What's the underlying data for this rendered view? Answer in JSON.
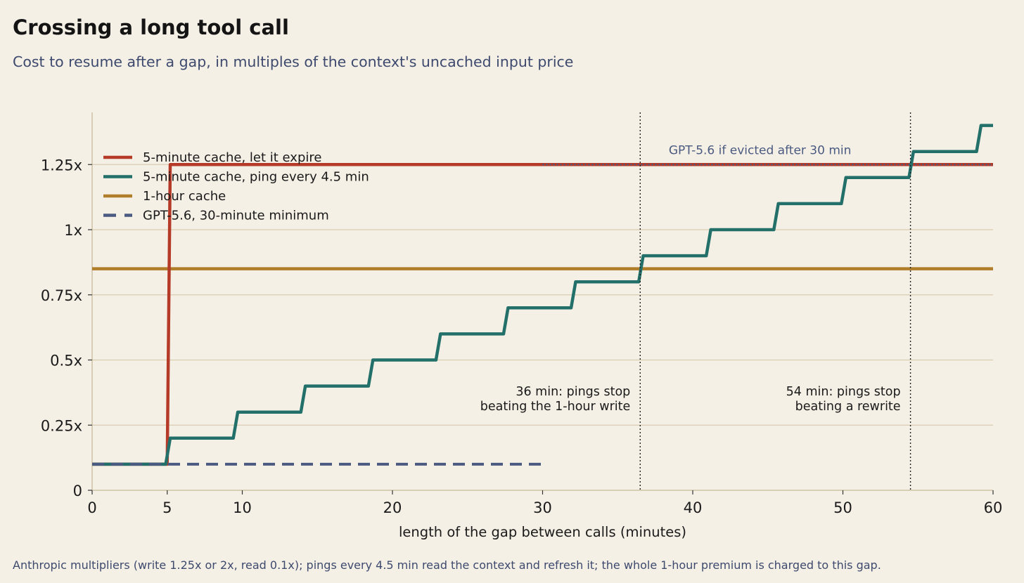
{
  "title": "Crossing a long tool call",
  "subtitle": "Cost to resume after a gap, in multiples of the context's uncached input price",
  "footnote": "Anthropic multipliers (write 1.25x or 2x, read 0.1x); pings every 4.5 min read the context and refresh it; the whole 1-hour premium is charged to this gap.",
  "colors": {
    "background": "#f5f0e6",
    "expire": "#b53a27",
    "ping": "#23706a",
    "hour": "#b07d2a",
    "gpt": "#4a5a80",
    "grid": "#d9cdb0",
    "axis": "#cfc3a6"
  },
  "chart_data": {
    "type": "line",
    "xlabel": "length of the gap between calls (minutes)",
    "ylabel": "",
    "xlim": [
      0,
      60
    ],
    "ylim": [
      0,
      1.45
    ],
    "xticks": [
      0,
      5,
      10,
      20,
      30,
      40,
      50,
      60
    ],
    "yticks": [
      {
        "value": 0,
        "label": "0"
      },
      {
        "value": 0.25,
        "label": "0.25x"
      },
      {
        "value": 0.5,
        "label": "0.5x"
      },
      {
        "value": 0.75,
        "label": "0.75x"
      },
      {
        "value": 1,
        "label": "1x"
      },
      {
        "value": 1.25,
        "label": "1.25x"
      }
    ],
    "grid": "horizontal",
    "legend_position": "top-left",
    "series": [
      {
        "name": "5-minute cache, let it expire",
        "color": "#b53a27",
        "style": "solid",
        "points": [
          [
            0,
            0.1
          ],
          [
            5,
            0.1
          ],
          [
            5.2,
            1.25
          ],
          [
            60,
            1.25
          ]
        ]
      },
      {
        "name": "5-minute cache, ping every 4.5 min",
        "color": "#23706a",
        "style": "solid",
        "points": [
          [
            0,
            0.1
          ],
          [
            4.9,
            0.1
          ],
          [
            5.2,
            0.2
          ],
          [
            9.4,
            0.2
          ],
          [
            9.7,
            0.3
          ],
          [
            13.9,
            0.3
          ],
          [
            14.2,
            0.4
          ],
          [
            18.4,
            0.4
          ],
          [
            18.7,
            0.5
          ],
          [
            22.9,
            0.5
          ],
          [
            23.2,
            0.6
          ],
          [
            27.4,
            0.6
          ],
          [
            27.7,
            0.7
          ],
          [
            31.9,
            0.7
          ],
          [
            32.2,
            0.8
          ],
          [
            36.4,
            0.8
          ],
          [
            36.7,
            0.9
          ],
          [
            40.9,
            0.9
          ],
          [
            41.2,
            1.0
          ],
          [
            45.4,
            1.0
          ],
          [
            45.7,
            1.1
          ],
          [
            49.9,
            1.1
          ],
          [
            50.2,
            1.2
          ],
          [
            54.4,
            1.2
          ],
          [
            54.7,
            1.3
          ],
          [
            58.9,
            1.3
          ],
          [
            59.2,
            1.4
          ],
          [
            60,
            1.4
          ]
        ]
      },
      {
        "name": "1-hour cache",
        "color": "#b07d2a",
        "style": "solid",
        "points": [
          [
            0,
            0.85
          ],
          [
            60,
            0.85
          ]
        ]
      },
      {
        "name": "GPT-5.6, 30-minute minimum",
        "color": "#4a5a80",
        "style": "dashed",
        "points": [
          [
            0,
            0.1
          ],
          [
            30,
            0.1
          ]
        ]
      }
    ],
    "gpt_evicted": {
      "label": "GPT-5.6 if evicted after 30 min",
      "y": 1.25,
      "x_from": 30,
      "x_to": 60
    },
    "annotations": [
      {
        "x": 36.5,
        "lines": [
          "36 min: pings stop",
          "beating the 1-hour write"
        ]
      },
      {
        "x": 54.5,
        "lines": [
          "54 min: pings stop",
          "beating a rewrite"
        ]
      }
    ]
  }
}
